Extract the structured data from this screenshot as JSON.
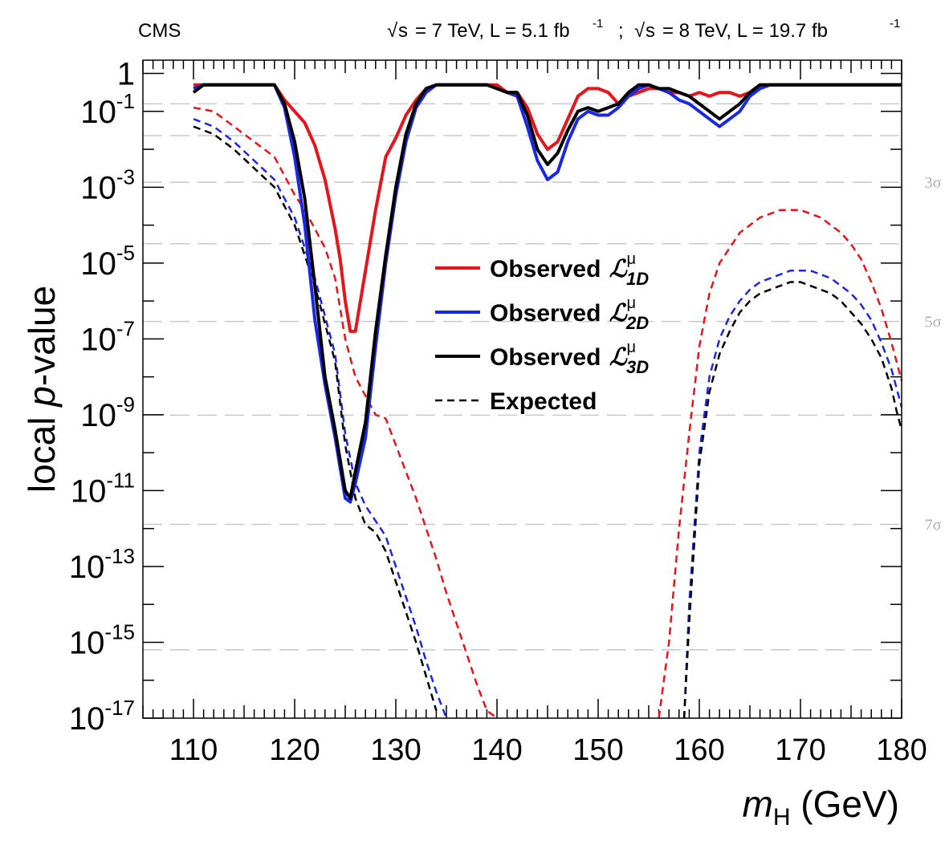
{
  "header": {
    "experiment": "CMS",
    "lumi": {
      "run1": {
        "energy": "= 7 TeV, L = 5.1 fb",
        "exp": "-1"
      },
      "separator": ";",
      "run2": {
        "energy": "= 8 TeV, L = 19.7 fb",
        "exp": "-1"
      },
      "sqrt_symbol": "√",
      "s": "s"
    }
  },
  "colors": {
    "red": "#e8141c",
    "blue": "#1a28e6",
    "black": "#000000",
    "grid": "#c8c8c8",
    "sigma": "#b0b0b0"
  },
  "chart_data": {
    "type": "line",
    "title": "",
    "xlabel": {
      "m": "m",
      "sub": "H",
      "rest": " (GeV)"
    },
    "ylabel": {
      "pre": "local ",
      "p": "p",
      "post": "-value"
    },
    "xlim": [
      105,
      180
    ],
    "ylim_log10": [
      -17,
      0.35
    ],
    "y_scale": "log",
    "xticks": [
      110,
      120,
      130,
      140,
      150,
      160,
      170,
      180
    ],
    "yticks": [
      {
        "log": 0,
        "base": "1",
        "exp": ""
      },
      {
        "log": -1,
        "base": "10",
        "exp": "-1"
      },
      {
        "log": -3,
        "base": "10",
        "exp": "-3"
      },
      {
        "log": -5,
        "base": "10",
        "exp": "-5"
      },
      {
        "log": -7,
        "base": "10",
        "exp": "-7"
      },
      {
        "log": -9,
        "base": "10",
        "exp": "-9"
      },
      {
        "log": -11,
        "base": "10",
        "exp": "-11"
      },
      {
        "log": -13,
        "base": "10",
        "exp": "-13"
      },
      {
        "log": -15,
        "base": "10",
        "exp": "-15"
      },
      {
        "log": -17,
        "base": "10",
        "exp": "-17"
      }
    ],
    "sigma_lines": [
      {
        "log": -0.8,
        "label": ""
      },
      {
        "log": -1.64,
        "label": ""
      },
      {
        "log": -2.87,
        "label": "3σ"
      },
      {
        "log": -4.49,
        "label": ""
      },
      {
        "log": -6.54,
        "label": "5σ"
      },
      {
        "log": -9.01,
        "label": ""
      },
      {
        "log": -11.89,
        "label": "7σ"
      },
      {
        "log": -15.2,
        "label": ""
      }
    ],
    "legend": {
      "position": "center",
      "entries": [
        {
          "label": "Observed",
          "sym": "ℒ",
          "sup": "μ",
          "sub": "1D",
          "style": "solid",
          "color": "#e8141c"
        },
        {
          "label": "Observed",
          "sym": "ℒ",
          "sup": "μ",
          "sub": "2D",
          "style": "solid",
          "color": "#1a28e6"
        },
        {
          "label": "Observed",
          "sym": "ℒ",
          "sup": "μ",
          "sub": "3D",
          "style": "solid",
          "color": "#000000"
        },
        {
          "label": "Expected",
          "sym": "",
          "sup": "",
          "sub": "",
          "style": "dashed",
          "color": "#000000"
        }
      ]
    },
    "series": [
      {
        "name": "Observed 1D",
        "style": "solid",
        "color": "#e8141c",
        "x": [
          110,
          111,
          112,
          113,
          114,
          115,
          116,
          117,
          118,
          119,
          120,
          121,
          122,
          123,
          124,
          124.5,
          125,
          125.5,
          126,
          127,
          128,
          129,
          130,
          131,
          132,
          133,
          134,
          135,
          136,
          137,
          138,
          139,
          140,
          141,
          142,
          143,
          144,
          145,
          146,
          147,
          148,
          149,
          150,
          151,
          152,
          153,
          154,
          155,
          156,
          157,
          158,
          159,
          160,
          161,
          162,
          163,
          164,
          165,
          166,
          167,
          168,
          169,
          170,
          171,
          172,
          173,
          174,
          175,
          176,
          177,
          178,
          179,
          180
        ],
        "log": [
          -0.3,
          -0.3,
          -0.3,
          -0.3,
          -0.3,
          -0.3,
          -0.3,
          -0.3,
          -0.3,
          -0.7,
          -1.0,
          -1.3,
          -1.9,
          -2.8,
          -4.1,
          -4.9,
          -6.0,
          -6.8,
          -6.8,
          -5.2,
          -3.6,
          -2.2,
          -1.7,
          -1.1,
          -0.7,
          -0.4,
          -0.3,
          -0.3,
          -0.3,
          -0.3,
          -0.3,
          -0.3,
          -0.3,
          -0.5,
          -0.5,
          -0.9,
          -1.6,
          -2.0,
          -1.8,
          -1.2,
          -0.6,
          -0.4,
          -0.4,
          -0.5,
          -0.8,
          -0.6,
          -0.5,
          -0.4,
          -0.4,
          -0.5,
          -0.5,
          -0.6,
          -0.5,
          -0.6,
          -0.5,
          -0.5,
          -0.6,
          -0.5,
          -0.3,
          -0.3,
          -0.3,
          -0.3,
          -0.3,
          -0.3,
          -0.3,
          -0.3,
          -0.3,
          -0.3,
          -0.3,
          -0.3,
          -0.3,
          -0.3,
          -0.3
        ]
      },
      {
        "name": "Observed 2D",
        "style": "solid",
        "color": "#1a28e6",
        "x": [
          110,
          111,
          112,
          113,
          114,
          115,
          116,
          117,
          118,
          119,
          120,
          121,
          122,
          123,
          124,
          125,
          125.5,
          126,
          127,
          128,
          129,
          130,
          131,
          132,
          133,
          134,
          135,
          136,
          137,
          138,
          139,
          140,
          141,
          142,
          143,
          144,
          145,
          146,
          147,
          148,
          149,
          150,
          151,
          152,
          153,
          154,
          155,
          156,
          157,
          158,
          159,
          160,
          161,
          162,
          163,
          164,
          165,
          166,
          167,
          168,
          169,
          170,
          171,
          172,
          173,
          174,
          175,
          176,
          177,
          178,
          179,
          180
        ],
        "log": [
          -0.4,
          -0.3,
          -0.3,
          -0.3,
          -0.3,
          -0.3,
          -0.3,
          -0.3,
          -0.3,
          -0.9,
          -2.2,
          -4.0,
          -6.5,
          -8.2,
          -9.6,
          -11.2,
          -11.3,
          -10.8,
          -9.6,
          -7.2,
          -5.0,
          -3.2,
          -1.8,
          -0.9,
          -0.5,
          -0.3,
          -0.3,
          -0.3,
          -0.3,
          -0.3,
          -0.3,
          -0.4,
          -0.5,
          -0.6,
          -1.4,
          -2.3,
          -2.8,
          -2.6,
          -1.8,
          -1.2,
          -1.0,
          -1.1,
          -1.1,
          -0.9,
          -0.6,
          -0.4,
          -0.3,
          -0.4,
          -0.5,
          -0.7,
          -0.8,
          -1.0,
          -1.2,
          -1.4,
          -1.2,
          -1.0,
          -0.6,
          -0.4,
          -0.3,
          -0.3,
          -0.3,
          -0.3,
          -0.3,
          -0.3,
          -0.3,
          -0.3,
          -0.3,
          -0.3,
          -0.3,
          -0.3,
          -0.3,
          -0.3
        ]
      },
      {
        "name": "Observed 3D",
        "style": "solid",
        "color": "#000000",
        "x": [
          110,
          111,
          112,
          113,
          114,
          115,
          116,
          117,
          118,
          119,
          120,
          121,
          122,
          123,
          124,
          125,
          125.5,
          126,
          127,
          128,
          129,
          130,
          131,
          132,
          133,
          134,
          135,
          136,
          137,
          138,
          139,
          140,
          141,
          142,
          143,
          144,
          145,
          146,
          147,
          148,
          149,
          150,
          151,
          152,
          153,
          154,
          155,
          156,
          157,
          158,
          159,
          160,
          161,
          162,
          163,
          164,
          165,
          166,
          167,
          168,
          169,
          170,
          171,
          172,
          173,
          174,
          175,
          176,
          177,
          178,
          179,
          180
        ],
        "log": [
          -0.5,
          -0.3,
          -0.3,
          -0.3,
          -0.3,
          -0.3,
          -0.3,
          -0.3,
          -0.3,
          -0.8,
          -1.8,
          -3.3,
          -5.6,
          -8.0,
          -9.4,
          -11.0,
          -11.2,
          -10.5,
          -9.2,
          -6.8,
          -4.8,
          -3.0,
          -1.6,
          -0.8,
          -0.4,
          -0.3,
          -0.3,
          -0.3,
          -0.3,
          -0.3,
          -0.3,
          -0.4,
          -0.5,
          -0.5,
          -1.1,
          -2.0,
          -2.4,
          -2.1,
          -1.5,
          -1.0,
          -0.9,
          -1.0,
          -0.9,
          -0.8,
          -0.5,
          -0.3,
          -0.3,
          -0.4,
          -0.4,
          -0.5,
          -0.6,
          -0.8,
          -1.0,
          -1.2,
          -1.0,
          -0.8,
          -0.5,
          -0.3,
          -0.3,
          -0.3,
          -0.3,
          -0.3,
          -0.3,
          -0.3,
          -0.3,
          -0.3,
          -0.3,
          -0.3,
          -0.3,
          -0.3,
          -0.3,
          -0.3
        ]
      },
      {
        "name": "Expected 1D",
        "style": "dashed",
        "color": "#e8141c",
        "x": [
          110,
          112,
          114,
          116,
          118,
          119,
          120,
          121,
          122,
          123,
          124,
          125,
          126,
          127,
          128,
          129,
          130,
          131,
          132,
          133,
          134,
          135,
          136,
          137,
          138,
          139,
          140,
          "gap",
          156,
          157,
          158,
          159,
          160,
          161,
          162,
          163,
          164,
          165,
          166,
          167,
          168,
          169,
          170,
          171,
          172,
          173,
          174,
          175,
          176,
          177,
          178,
          179,
          180
        ],
        "log": [
          -0.9,
          -1.0,
          -1.4,
          -1.8,
          -2.2,
          -2.7,
          -3.2,
          -3.6,
          -4.1,
          -4.6,
          -5.4,
          -7.0,
          -8.0,
          -8.5,
          -9.0,
          -9.1,
          -9.8,
          -10.5,
          -11.2,
          -12.0,
          -12.8,
          -13.7,
          -14.5,
          -15.3,
          -16.1,
          -16.8,
          -17.5,
          null,
          -17.4,
          -15.0,
          -12.0,
          -9.5,
          -7.2,
          -5.8,
          -5.0,
          -4.6,
          -4.2,
          -4.0,
          -3.8,
          -3.7,
          -3.6,
          -3.6,
          -3.6,
          -3.7,
          -3.8,
          -4.0,
          -4.2,
          -4.5,
          -4.9,
          -5.5,
          -6.2,
          -7.1,
          -8.1
        ]
      },
      {
        "name": "Expected 2D",
        "style": "dashed",
        "color": "#1a28e6",
        "x": [
          110,
          112,
          114,
          116,
          118,
          119,
          120,
          121,
          122,
          123,
          124,
          125,
          126,
          127,
          128,
          129,
          130,
          131,
          132,
          133,
          134,
          135,
          "gap",
          158.5,
          159,
          160,
          161,
          162,
          163,
          164,
          165,
          166,
          167,
          168,
          169,
          170,
          171,
          172,
          173,
          174,
          175,
          176,
          177,
          178,
          179,
          180
        ],
        "log": [
          -1.2,
          -1.4,
          -1.8,
          -2.3,
          -2.8,
          -3.3,
          -3.8,
          -4.6,
          -5.4,
          -6.4,
          -7.4,
          -9.5,
          -10.8,
          -11.4,
          -11.8,
          -12.2,
          -13.0,
          -13.8,
          -14.6,
          -15.5,
          -16.3,
          -17.2,
          null,
          -17.4,
          -14.0,
          -10.0,
          -8.0,
          -7.0,
          -6.4,
          -6.0,
          -5.7,
          -5.5,
          -5.4,
          -5.3,
          -5.2,
          -5.2,
          -5.2,
          -5.3,
          -5.4,
          -5.6,
          -5.8,
          -6.1,
          -6.5,
          -7.1,
          -7.8,
          -8.8
        ]
      },
      {
        "name": "Expected 3D",
        "style": "dashed",
        "color": "#000000",
        "x": [
          110,
          112,
          114,
          116,
          118,
          119,
          120,
          121,
          122,
          123,
          124,
          125,
          126,
          127,
          128,
          129,
          130,
          131,
          132,
          133,
          134,
          "gap",
          158.5,
          159,
          160,
          161,
          162,
          163,
          164,
          165,
          166,
          167,
          168,
          169,
          170,
          171,
          172,
          173,
          174,
          175,
          176,
          177,
          178,
          179,
          179.5,
          180
        ],
        "log": [
          -1.4,
          -1.6,
          -2.0,
          -2.5,
          -3.0,
          -3.5,
          -4.0,
          -4.8,
          -5.6,
          -6.6,
          -7.6,
          -9.8,
          -11.2,
          -11.9,
          -12.1,
          -12.6,
          -13.4,
          -14.2,
          -15.0,
          -15.9,
          -16.8,
          null,
          -17.4,
          -14.5,
          -10.3,
          -8.4,
          -7.4,
          -6.8,
          -6.3,
          -6.0,
          -5.8,
          -5.7,
          -5.6,
          -5.5,
          -5.5,
          -5.6,
          -5.7,
          -5.8,
          -6.0,
          -6.3,
          -6.6,
          -7.0,
          -7.5,
          -8.3,
          -8.9,
          -9.4
        ]
      }
    ]
  }
}
